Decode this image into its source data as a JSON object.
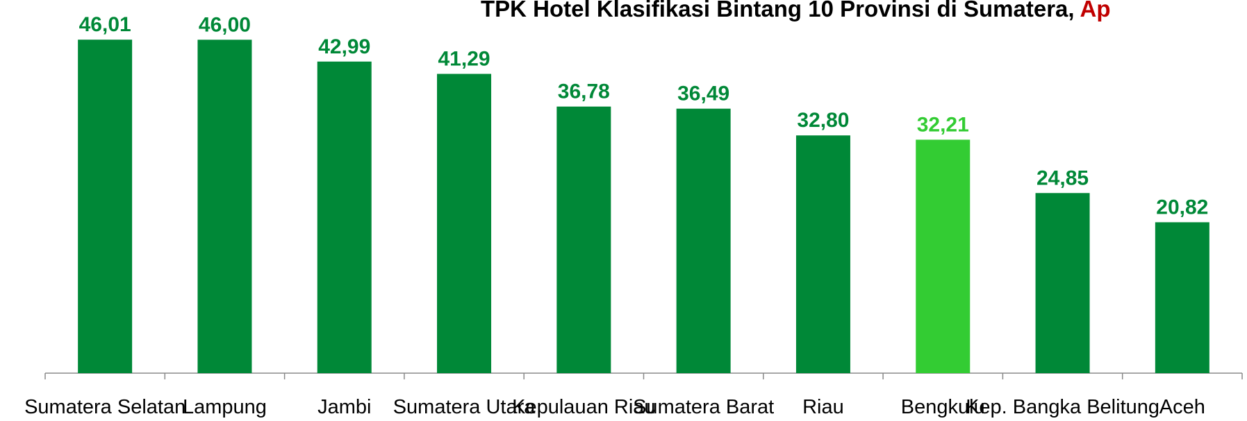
{
  "chart_data": {
    "type": "bar",
    "title": "TPK Hotel Klasifikasi Bintang 10 Provinsi di Sumatera,",
    "title_highlight": "Ap",
    "categories": [
      "Sumatera Selatan",
      "Lampung",
      "Jambi",
      "Sumatera Utara",
      "Kepulauan Riau",
      "Sumatera Barat",
      "Riau",
      "Bengkulu",
      "Kep. Bangka Belitung",
      "Aceh"
    ],
    "values": [
      46.01,
      46.0,
      42.99,
      41.29,
      36.78,
      36.49,
      32.8,
      32.21,
      24.85,
      20.82
    ],
    "value_labels": [
      "46,01",
      "46,00",
      "42,99",
      "41,29",
      "36,78",
      "36,49",
      "32,80",
      "32,21",
      "24,85",
      "20,82"
    ],
    "colors": [
      "#008837",
      "#008837",
      "#008837",
      "#008837",
      "#008837",
      "#008837",
      "#008837",
      "#33cc33",
      "#008837",
      "#008837"
    ],
    "ylim": [
      0,
      50
    ]
  }
}
